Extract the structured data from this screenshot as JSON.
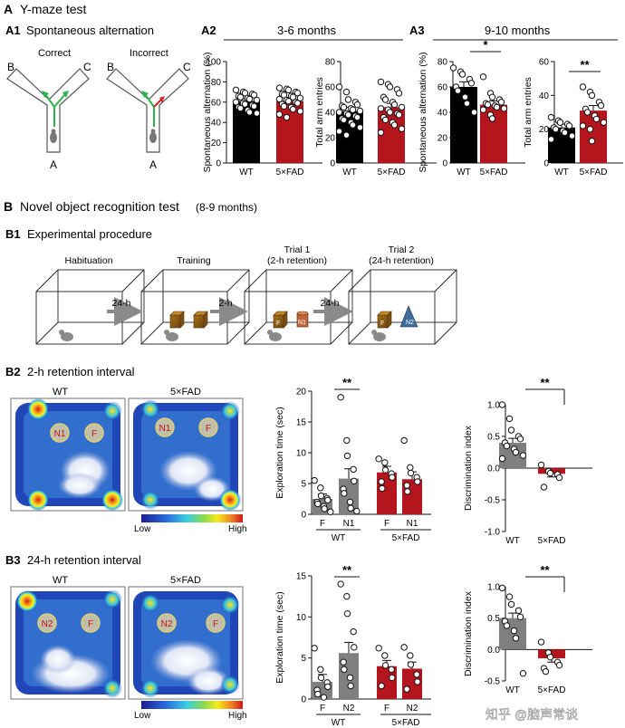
{
  "sectionA": {
    "letter": "A",
    "title": "Y-maze test",
    "a1": {
      "label": "A1",
      "title": "Spontaneous alternation",
      "correct": "Correct",
      "incorrect": "Incorrect",
      "armA": "A",
      "armB": "B",
      "armC": "C"
    },
    "a2": {
      "label": "A2",
      "age": "3-6 months"
    },
    "a3": {
      "label": "A3",
      "age": "9-10 months"
    }
  },
  "sectionB": {
    "letter": "B",
    "title": "Novel object recognition test",
    "subtitle": "(8-9 months)",
    "b1": {
      "label": "B1",
      "title": "Experimental procedure",
      "stages": [
        "Habituation",
        "Training",
        "Trial 1\n(2-h retention)",
        "Trial 2\n(24-h retention)"
      ],
      "arrows": [
        "24-h",
        "2-h",
        "24-h"
      ],
      "familiar": "F",
      "novel1": "N1",
      "novel2": "N2"
    },
    "b2": {
      "label": "B2",
      "title": "2-h retention interval",
      "wt": "WT",
      "fad": "5×FAD",
      "n": "N1",
      "f": "F"
    },
    "b3": {
      "label": "B3",
      "title": "24-h retention interval",
      "wt": "WT",
      "fad": "5×FAD",
      "n": "N2",
      "f": "F"
    },
    "scale": {
      "low": "Low",
      "high": "High"
    }
  },
  "watermark": "知乎 @脑声常谈",
  "colors": {
    "wt": "#000000",
    "fad": "#b5161e",
    "gray": "#7f7f7f",
    "accent_red": "#c1121f"
  },
  "chart_data": [
    {
      "id": "a2-alt",
      "type": "bar",
      "ylabel": "Spontaneous alternation (%)",
      "ylim": [
        0,
        100
      ],
      "yticks": [
        0,
        20,
        40,
        60,
        80,
        100
      ],
      "categories": [
        "WT",
        "5×FAD"
      ],
      "values": [
        61,
        61
      ],
      "errors": [
        2.5,
        3
      ],
      "points": [
        [
          72,
          70,
          69,
          68,
          67,
          66,
          65,
          64,
          63,
          62,
          60,
          59,
          58,
          57,
          56,
          55,
          54,
          52,
          50,
          49
        ],
        [
          74,
          73,
          72,
          70,
          69,
          68,
          67,
          66,
          65,
          64,
          63,
          62,
          61,
          60,
          59,
          58,
          56,
          55,
          53,
          51,
          48,
          45
        ]
      ]
    },
    {
      "id": "a2-arm",
      "type": "bar",
      "ylabel": "Total arm entries",
      "ylim": [
        0,
        80
      ],
      "yticks": [
        0,
        20,
        40,
        60,
        80
      ],
      "categories": [
        "WT",
        "5×FAD"
      ],
      "values": [
        41,
        44
      ],
      "errors": [
        3,
        3
      ],
      "points": [
        [
          60,
          56,
          50,
          48,
          46,
          45,
          44,
          43,
          42,
          41,
          40,
          39,
          38,
          37,
          36,
          35,
          34,
          32,
          30,
          28,
          25,
          22
        ],
        [
          64,
          62,
          60,
          58,
          55,
          52,
          50,
          48,
          46,
          44,
          43,
          42,
          40,
          39,
          38,
          36,
          34,
          32,
          30,
          27,
          24
        ]
      ]
    },
    {
      "id": "a3-alt",
      "type": "bar",
      "ylabel": "Spontaneous alternation (%)",
      "ylim": [
        0,
        80
      ],
      "yticks": [
        0,
        20,
        40,
        60,
        80
      ],
      "categories": [
        "WT",
        "5×FAD"
      ],
      "values": [
        60,
        46
      ],
      "errors": [
        4,
        3
      ],
      "sig": "*",
      "points": [
        [
          75,
          72,
          70,
          66,
          63,
          60,
          57,
          52,
          47,
          40
        ],
        [
          68,
          55,
          52,
          50,
          48,
          47,
          46,
          45,
          44,
          43,
          42,
          38,
          35
        ]
      ]
    },
    {
      "id": "a3-arm",
      "type": "bar",
      "ylabel": "Total arm entries",
      "ylim": [
        0,
        60
      ],
      "yticks": [
        0,
        20,
        40,
        60
      ],
      "categories": [
        "WT",
        "5×FAD"
      ],
      "values": [
        21,
        31
      ],
      "errors": [
        2,
        3
      ],
      "sig": "**",
      "points": [
        [
          27,
          25,
          24,
          23,
          22,
          21,
          20,
          19,
          18,
          16,
          14
        ],
        [
          45,
          42,
          40,
          36,
          34,
          32,
          30,
          28,
          26,
          24,
          22,
          20,
          13
        ]
      ]
    },
    {
      "id": "b2-exp",
      "type": "bar",
      "ylabel": "Exploration time (sec)",
      "ylim": [
        0,
        20
      ],
      "yticks": [
        0,
        5,
        10,
        15,
        20
      ],
      "categories": [
        "F",
        "N1",
        "F",
        "N1"
      ],
      "groups": [
        "WT",
        "5×FAD"
      ],
      "values": [
        2.5,
        5.8,
        6.8,
        5.7
      ],
      "errors": [
        0.8,
        1.6,
        1.0,
        1.2
      ],
      "sig": "**",
      "points": [
        [
          5.5,
          4.3,
          3.0,
          2.6,
          2.3,
          2.0,
          1.7,
          1.3,
          0.9,
          0.4
        ],
        [
          19,
          12,
          9.5,
          7.3,
          5.4,
          4.1,
          3.4,
          2.0,
          1.0,
          0.5
        ],
        [
          9,
          8.4,
          7.2,
          6.6,
          6.0,
          5.3,
          4.2
        ],
        [
          12,
          7.6,
          6.7,
          6.0,
          5.3,
          4.7,
          3.7
        ]
      ]
    },
    {
      "id": "b2-di",
      "type": "bar",
      "ylabel": "Discrimination index",
      "ylim": [
        -1,
        1
      ],
      "yticks": [
        -1.0,
        -0.5,
        0.0,
        0.5,
        1.0
      ],
      "categories": [
        "WT",
        "5×FAD"
      ],
      "values": [
        0.4,
        -0.09
      ],
      "errors": [
        0.07,
        0.05
      ],
      "sig": "**",
      "points": [
        [
          1.0,
          0.78,
          0.6,
          0.5,
          0.46,
          0.4,
          0.35,
          0.3,
          0.25,
          0.2,
          0.15
        ],
        [
          0.05,
          -0.05,
          -0.08,
          -0.1,
          -0.15,
          -0.3
        ]
      ]
    },
    {
      "id": "b3-exp",
      "type": "bar",
      "ylabel": "Exploration time (sec)",
      "ylim": [
        0,
        15
      ],
      "yticks": [
        0,
        5,
        10,
        15
      ],
      "categories": [
        "F",
        "N2",
        "F",
        "N2"
      ],
      "groups": [
        "WT",
        "5×FAD"
      ],
      "values": [
        2.1,
        5.6,
        4.0,
        3.7
      ],
      "errors": [
        0.9,
        1.3,
        0.7,
        0.8
      ],
      "sig": "**",
      "points": [
        [
          6.2,
          3.6,
          2.6,
          2.0,
          1.5,
          1.1,
          0.6,
          0.2
        ],
        [
          14,
          12.5,
          10.4,
          8.2,
          6.3,
          4.5,
          3.6,
          2.6,
          1.6
        ],
        [
          6.2,
          5.3,
          4.1,
          3.6,
          2.6,
          1.6
        ],
        [
          6.3,
          5.3,
          4.2,
          3.0,
          2.1,
          1.2
        ]
      ]
    },
    {
      "id": "b3-di",
      "type": "bar",
      "ylabel": "Discrimination index",
      "ylim": [
        -0.5,
        1
      ],
      "yticks": [
        -0.5,
        0.0,
        0.5,
        1.0
      ],
      "categories": [
        "WT",
        "5×FAD"
      ],
      "values": [
        0.5,
        -0.14
      ],
      "errors": [
        0.08,
        0.06
      ],
      "sig": "**",
      "points": [
        [
          0.98,
          0.84,
          0.72,
          0.62,
          0.52,
          0.45,
          0.38,
          0.3,
          0.18,
          -0.38
        ],
        [
          0.12,
          -0.05,
          -0.12,
          -0.2,
          -0.25,
          -0.3,
          -0.35
        ]
      ]
    }
  ]
}
